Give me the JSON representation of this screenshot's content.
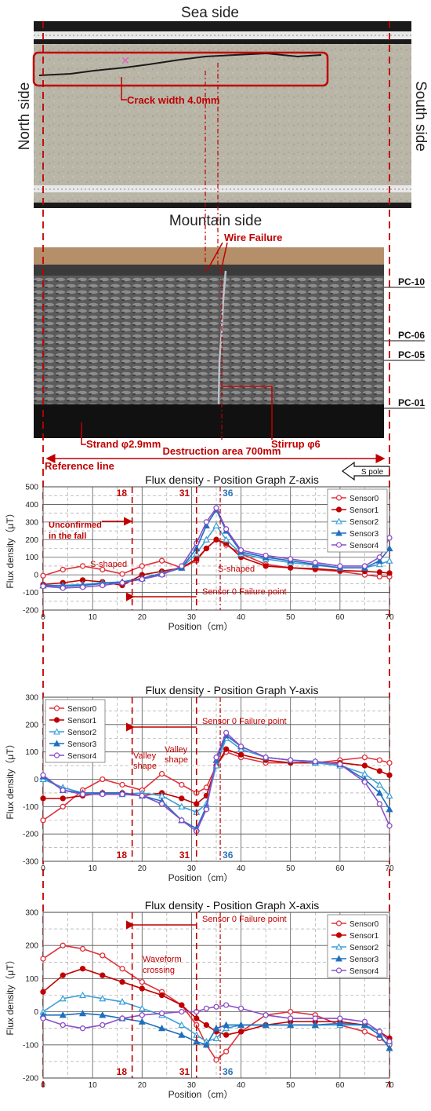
{
  "photo_top": {
    "top_label": "Sea side",
    "bottom_label": "Mountain side",
    "left_label": "North side",
    "right_label": "South side",
    "crack_label": "Crack width 4.0mm"
  },
  "photo_bottom": {
    "wire_failure_label": "Wire Failure",
    "pc_labels": [
      "PC-10",
      "PC-06",
      "PC-05",
      "PC-01"
    ],
    "strand_label": "Strand φ2.9mm",
    "stirrup_label": "Stirrup φ6",
    "destruction_label": "Destruction area 700mm"
  },
  "reference_line_label": "Reference line",
  "spole_label": "S pole",
  "marker_labels": {
    "m18": "18",
    "m31": "31",
    "m36": "36"
  },
  "colors": {
    "marker_red": "#c00000",
    "marker_blue": "#2e75b6",
    "sensor0": "#e0303a",
    "sensor1": "#c00000",
    "sensor2": "#3aa0d8",
    "sensor3": "#1f6fbf",
    "sensor4": "#8a4fc8"
  },
  "chart_data": [
    {
      "type": "line",
      "title": "Flux density - Position Graph  Z-axis",
      "xlabel": "Position（cm）",
      "ylabel": "Flux density（μT）",
      "xlim": [
        0,
        70
      ],
      "ylim": [
        -200,
        500
      ],
      "xticks": [
        0,
        10,
        20,
        30,
        40,
        50,
        60,
        70
      ],
      "yticks": [
        -200,
        -100,
        0,
        100,
        200,
        300,
        400,
        500
      ],
      "grid": true,
      "legend_position": "top-right",
      "annotations": [
        "Unconfirmed in the fall",
        "S-shaped",
        "S-shaped",
        "Sensor 0 Failure point"
      ],
      "series": [
        {
          "name": "Sensor0",
          "x": [
            0,
            4,
            8,
            12,
            16,
            20,
            24,
            28,
            31,
            33,
            35,
            37,
            40,
            45,
            50,
            55,
            60,
            65,
            68,
            70
          ],
          "y": [
            -5,
            30,
            50,
            30,
            5,
            50,
            80,
            40,
            80,
            150,
            200,
            170,
            120,
            60,
            40,
            30,
            20,
            0,
            -10,
            -10
          ]
        },
        {
          "name": "Sensor1",
          "x": [
            0,
            4,
            8,
            12,
            16,
            20,
            24,
            28,
            31,
            33,
            35,
            37,
            40,
            45,
            50,
            55,
            60,
            65,
            68,
            70
          ],
          "y": [
            -55,
            -45,
            -30,
            -40,
            -60,
            0,
            20,
            40,
            90,
            150,
            200,
            180,
            100,
            50,
            40,
            35,
            25,
            20,
            15,
            10
          ]
        },
        {
          "name": "Sensor2",
          "x": [
            0,
            4,
            8,
            12,
            16,
            20,
            24,
            28,
            31,
            33,
            35,
            37,
            40,
            45,
            50,
            55,
            60,
            65,
            68,
            70
          ],
          "y": [
            -60,
            -60,
            -55,
            -45,
            -40,
            -20,
            10,
            40,
            120,
            200,
            280,
            200,
            120,
            90,
            70,
            55,
            40,
            40,
            60,
            80
          ]
        },
        {
          "name": "Sensor3",
          "x": [
            0,
            4,
            8,
            12,
            16,
            20,
            24,
            28,
            31,
            33,
            35,
            37,
            40,
            45,
            50,
            55,
            60,
            65,
            68,
            70
          ],
          "y": [
            -60,
            -65,
            -60,
            -50,
            -40,
            -20,
            5,
            40,
            150,
            280,
            370,
            250,
            130,
            100,
            80,
            60,
            40,
            40,
            80,
            150
          ]
        },
        {
          "name": "Sensor4",
          "x": [
            0,
            4,
            8,
            12,
            16,
            20,
            24,
            28,
            31,
            33,
            35,
            37,
            40,
            45,
            50,
            55,
            60,
            65,
            68,
            70
          ],
          "y": [
            -65,
            -75,
            -70,
            -60,
            -45,
            -25,
            0,
            50,
            180,
            300,
            380,
            260,
            140,
            110,
            90,
            70,
            50,
            50,
            100,
            210
          ]
        }
      ]
    },
    {
      "type": "line",
      "title": "Flux density - Position Graph  Y-axis",
      "xlabel": "Position（cm）",
      "ylabel": "Flux density（μT）",
      "xlim": [
        0,
        70
      ],
      "ylim": [
        -300,
        300
      ],
      "xticks": [
        0,
        10,
        20,
        30,
        40,
        50,
        60,
        70
      ],
      "yticks": [
        -300,
        -200,
        -100,
        0,
        100,
        200,
        300
      ],
      "grid": true,
      "legend_position": "top-left",
      "annotations": [
        "Sensor 0 Failure point",
        "Valley shape",
        "Valley shape"
      ],
      "series": [
        {
          "name": "Sensor0",
          "x": [
            0,
            4,
            8,
            12,
            16,
            20,
            24,
            28,
            31,
            33,
            35,
            37,
            40,
            45,
            50,
            55,
            60,
            65,
            68,
            70
          ],
          "y": [
            -150,
            -100,
            -40,
            0,
            -20,
            -40,
            20,
            -20,
            -50,
            -30,
            50,
            100,
            80,
            60,
            60,
            60,
            70,
            80,
            70,
            60
          ]
        },
        {
          "name": "Sensor1",
          "x": [
            0,
            4,
            8,
            12,
            16,
            20,
            24,
            28,
            31,
            33,
            35,
            37,
            40,
            45,
            50,
            55,
            60,
            65,
            68,
            70
          ],
          "y": [
            -70,
            -70,
            -60,
            -50,
            -50,
            -60,
            -50,
            -70,
            -90,
            -60,
            50,
            110,
            90,
            70,
            60,
            60,
            60,
            50,
            30,
            15
          ]
        },
        {
          "name": "Sensor2",
          "x": [
            0,
            4,
            8,
            12,
            16,
            20,
            24,
            28,
            31,
            33,
            35,
            37,
            40,
            45,
            50,
            55,
            60,
            65,
            68,
            70
          ],
          "y": [
            0,
            -30,
            -50,
            -50,
            -55,
            -50,
            -60,
            -100,
            -120,
            -90,
            50,
            150,
            110,
            80,
            70,
            60,
            50,
            20,
            -20,
            -60
          ]
        },
        {
          "name": "Sensor3",
          "x": [
            0,
            4,
            8,
            12,
            16,
            20,
            24,
            28,
            31,
            33,
            35,
            37,
            40,
            45,
            50,
            55,
            60,
            65,
            68,
            70
          ],
          "y": [
            10,
            -40,
            -50,
            -50,
            -50,
            -60,
            -80,
            -150,
            -180,
            -100,
            70,
            160,
            120,
            80,
            70,
            65,
            55,
            0,
            -50,
            -110
          ]
        },
        {
          "name": "Sensor4",
          "x": [
            0,
            4,
            8,
            12,
            16,
            20,
            24,
            28,
            31,
            33,
            35,
            37,
            40,
            45,
            50,
            55,
            60,
            65,
            68,
            70
          ],
          "y": [
            15,
            -40,
            -55,
            -55,
            -55,
            -60,
            -90,
            -150,
            -190,
            -110,
            80,
            170,
            120,
            80,
            70,
            65,
            55,
            -10,
            -90,
            -170
          ]
        }
      ]
    },
    {
      "type": "line",
      "title": "Flux density - Position Graph  X-axis",
      "xlabel": "Position（cm）",
      "ylabel": "Flux density（μT）",
      "xlim": [
        0,
        70
      ],
      "ylim": [
        -200,
        300
      ],
      "xticks": [
        0,
        10,
        20,
        30,
        40,
        50,
        60,
        70
      ],
      "yticks": [
        -200,
        -100,
        0,
        100,
        200,
        300
      ],
      "grid": true,
      "legend_position": "top-right",
      "annotations": [
        "Sensor 0 Failure point",
        "Waveform crossing"
      ],
      "series": [
        {
          "name": "Sensor0",
          "x": [
            0,
            4,
            8,
            12,
            16,
            20,
            24,
            28,
            31,
            33,
            35,
            37,
            40,
            45,
            50,
            55,
            60,
            65,
            68,
            70
          ],
          "y": [
            160,
            200,
            190,
            170,
            130,
            90,
            60,
            20,
            -40,
            -100,
            -145,
            -120,
            -60,
            -10,
            0,
            -10,
            -40,
            -60,
            -80,
            -100
          ]
        },
        {
          "name": "Sensor1",
          "x": [
            0,
            4,
            8,
            12,
            16,
            20,
            24,
            28,
            31,
            33,
            35,
            37,
            40,
            45,
            50,
            55,
            60,
            65,
            68,
            70
          ],
          "y": [
            60,
            110,
            130,
            110,
            90,
            70,
            50,
            20,
            -20,
            -40,
            -60,
            -70,
            -60,
            -40,
            -30,
            -30,
            -30,
            -40,
            -60,
            -80
          ]
        },
        {
          "name": "Sensor2",
          "x": [
            0,
            4,
            8,
            12,
            16,
            20,
            24,
            28,
            31,
            33,
            35,
            37,
            40,
            45,
            50,
            55,
            60,
            65,
            68,
            70
          ],
          "y": [
            0,
            40,
            50,
            40,
            30,
            10,
            -10,
            -40,
            -70,
            -90,
            -80,
            -50,
            -40,
            -40,
            -40,
            -40,
            -40,
            -40,
            -60,
            -90
          ]
        },
        {
          "name": "Sensor3",
          "x": [
            0,
            4,
            8,
            12,
            16,
            20,
            24,
            28,
            31,
            33,
            35,
            37,
            40,
            45,
            50,
            55,
            60,
            65,
            68,
            70
          ],
          "y": [
            -10,
            -10,
            -5,
            -10,
            -20,
            -30,
            -50,
            -70,
            -90,
            -100,
            -50,
            -40,
            -40,
            -40,
            -40,
            -40,
            -35,
            -40,
            -70,
            -110
          ]
        },
        {
          "name": "Sensor4",
          "x": [
            0,
            4,
            8,
            12,
            16,
            20,
            24,
            28,
            31,
            33,
            35,
            37,
            40,
            45,
            50,
            55,
            60,
            65,
            68,
            70
          ],
          "y": [
            -20,
            -40,
            -50,
            -40,
            -20,
            -10,
            -5,
            0,
            0,
            10,
            15,
            20,
            10,
            -10,
            -20,
            -20,
            -20,
            -30,
            -60,
            -90
          ]
        }
      ]
    }
  ]
}
